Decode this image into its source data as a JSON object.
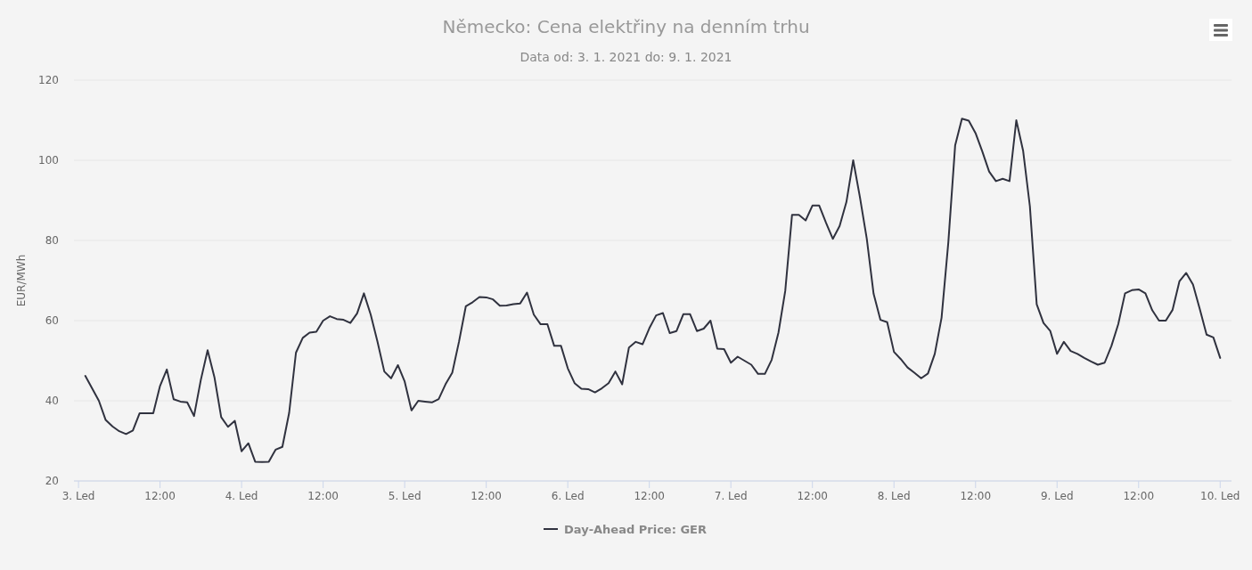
{
  "chart_data": {
    "type": "line",
    "title": "Německo: Cena elektřiny na denním trhu",
    "subtitle": "Data od: 3. 1. 2021 do: 9. 1. 2021",
    "ylabel": "EUR/MWh",
    "xlim": [
      "2021-01-02T23:20",
      "2021-01-10T01:40"
    ],
    "xticks": [
      {
        "value": "2021-01-03T00:00",
        "label": "3. Led"
      },
      {
        "value": "2021-01-03T12:00",
        "label": "12:00"
      },
      {
        "value": "2021-01-04T00:00",
        "label": "4. Led"
      },
      {
        "value": "2021-01-04T12:00",
        "label": "12:00"
      },
      {
        "value": "2021-01-05T00:00",
        "label": "5. Led"
      },
      {
        "value": "2021-01-05T12:00",
        "label": "12:00"
      },
      {
        "value": "2021-01-06T00:00",
        "label": "6. Led"
      },
      {
        "value": "2021-01-06T12:00",
        "label": "12:00"
      },
      {
        "value": "2021-01-07T00:00",
        "label": "7. Led"
      },
      {
        "value": "2021-01-07T12:00",
        "label": "12:00"
      },
      {
        "value": "2021-01-08T00:00",
        "label": "8. Led"
      },
      {
        "value": "2021-01-08T12:00",
        "label": "12:00"
      },
      {
        "value": "2021-01-09T00:00",
        "label": "9. Led"
      },
      {
        "value": "2021-01-09T12:00",
        "label": "12:00"
      },
      {
        "value": "2021-01-10T00:00",
        "label": "10. Led"
      }
    ],
    "ylim": [
      20,
      120
    ],
    "yticks": [
      20,
      40,
      60,
      80,
      100,
      120
    ],
    "grid": "y",
    "legend": "bottom",
    "x": [
      "2021-01-03T01:00",
      "2021-01-03T02:00",
      "2021-01-03T03:00",
      "2021-01-03T04:00",
      "2021-01-03T05:00",
      "2021-01-03T06:00",
      "2021-01-03T07:00",
      "2021-01-03T08:00",
      "2021-01-03T09:00",
      "2021-01-03T10:00",
      "2021-01-03T11:00",
      "2021-01-03T12:00",
      "2021-01-03T13:00",
      "2021-01-03T14:00",
      "2021-01-03T15:00",
      "2021-01-03T16:00",
      "2021-01-03T17:00",
      "2021-01-03T18:00",
      "2021-01-03T19:00",
      "2021-01-03T20:00",
      "2021-01-03T21:00",
      "2021-01-03T22:00",
      "2021-01-03T23:00",
      "2021-01-04T00:00",
      "2021-01-04T01:00",
      "2021-01-04T02:00",
      "2021-01-04T03:00",
      "2021-01-04T04:00",
      "2021-01-04T05:00",
      "2021-01-04T06:00",
      "2021-01-04T07:00",
      "2021-01-04T08:00",
      "2021-01-04T09:00",
      "2021-01-04T10:00",
      "2021-01-04T11:00",
      "2021-01-04T12:00",
      "2021-01-04T13:00",
      "2021-01-04T14:00",
      "2021-01-04T15:00",
      "2021-01-04T16:00",
      "2021-01-04T17:00",
      "2021-01-04T18:00",
      "2021-01-04T19:00",
      "2021-01-04T20:00",
      "2021-01-04T21:00",
      "2021-01-04T22:00",
      "2021-01-04T23:00",
      "2021-01-05T00:00",
      "2021-01-05T01:00",
      "2021-01-05T02:00",
      "2021-01-05T03:00",
      "2021-01-05T04:00",
      "2021-01-05T05:00",
      "2021-01-05T06:00",
      "2021-01-05T07:00",
      "2021-01-05T08:00",
      "2021-01-05T09:00",
      "2021-01-05T10:00",
      "2021-01-05T11:00",
      "2021-01-05T12:00",
      "2021-01-05T13:00",
      "2021-01-05T14:00",
      "2021-01-05T15:00",
      "2021-01-05T16:00",
      "2021-01-05T17:00",
      "2021-01-05T18:00",
      "2021-01-05T19:00",
      "2021-01-05T20:00",
      "2021-01-05T21:00",
      "2021-01-05T22:00",
      "2021-01-05T23:00",
      "2021-01-06T00:00",
      "2021-01-06T01:00",
      "2021-01-06T02:00",
      "2021-01-06T03:00",
      "2021-01-06T04:00",
      "2021-01-06T05:00",
      "2021-01-06T06:00",
      "2021-01-06T07:00",
      "2021-01-06T08:00",
      "2021-01-06T09:00",
      "2021-01-06T10:00",
      "2021-01-06T11:00",
      "2021-01-06T12:00",
      "2021-01-06T13:00",
      "2021-01-06T14:00",
      "2021-01-06T15:00",
      "2021-01-06T16:00",
      "2021-01-06T17:00",
      "2021-01-06T18:00",
      "2021-01-06T19:00",
      "2021-01-06T20:00",
      "2021-01-06T21:00",
      "2021-01-06T22:00",
      "2021-01-06T23:00",
      "2021-01-07T00:00",
      "2021-01-07T01:00",
      "2021-01-07T02:00",
      "2021-01-07T03:00",
      "2021-01-07T04:00",
      "2021-01-07T05:00",
      "2021-01-07T06:00",
      "2021-01-07T07:00",
      "2021-01-07T08:00",
      "2021-01-07T09:00",
      "2021-01-07T10:00",
      "2021-01-07T11:00",
      "2021-01-07T12:00",
      "2021-01-07T13:00",
      "2021-01-07T14:00",
      "2021-01-07T15:00",
      "2021-01-07T16:00",
      "2021-01-07T17:00",
      "2021-01-07T18:00",
      "2021-01-07T19:00",
      "2021-01-07T20:00",
      "2021-01-07T21:00",
      "2021-01-07T22:00",
      "2021-01-07T23:00",
      "2021-01-08T00:00",
      "2021-01-08T01:00",
      "2021-01-08T02:00",
      "2021-01-08T03:00",
      "2021-01-08T04:00",
      "2021-01-08T05:00",
      "2021-01-08T06:00",
      "2021-01-08T07:00",
      "2021-01-08T08:00",
      "2021-01-08T09:00",
      "2021-01-08T10:00",
      "2021-01-08T11:00",
      "2021-01-08T12:00",
      "2021-01-08T13:00",
      "2021-01-08T14:00",
      "2021-01-08T15:00",
      "2021-01-08T16:00",
      "2021-01-08T17:00",
      "2021-01-08T18:00",
      "2021-01-08T19:00",
      "2021-01-08T20:00",
      "2021-01-08T21:00",
      "2021-01-08T22:00",
      "2021-01-08T23:00",
      "2021-01-09T00:00",
      "2021-01-09T01:00",
      "2021-01-09T02:00",
      "2021-01-09T03:00",
      "2021-01-09T04:00",
      "2021-01-09T05:00",
      "2021-01-09T06:00",
      "2021-01-09T07:00",
      "2021-01-09T08:00",
      "2021-01-09T09:00",
      "2021-01-09T10:00",
      "2021-01-09T11:00",
      "2021-01-09T12:00",
      "2021-01-09T13:00",
      "2021-01-09T14:00",
      "2021-01-09T15:00",
      "2021-01-09T16:00",
      "2021-01-09T17:00",
      "2021-01-09T18:00",
      "2021-01-09T19:00",
      "2021-01-09T20:00",
      "2021-01-09T21:00",
      "2021-01-09T22:00",
      "2021-01-09T23:00",
      "2021-01-10T00:00"
    ],
    "series": [
      {
        "name": "Day-Ahead Price: GER",
        "color": "#30323f",
        "values": [
          46.2,
          43.1,
          40,
          35.2,
          33.6,
          32.4,
          31.7,
          32.6,
          36.9,
          36.9,
          36.9,
          43.7,
          47.8,
          40.4,
          39.8,
          39.6,
          36.2,
          45.2,
          52.6,
          45.9,
          35.9,
          33.5,
          35,
          27.4,
          29.4,
          24.8,
          24.7,
          24.8,
          27.8,
          28.5,
          37,
          52,
          55.7,
          57,
          57.2,
          60,
          61.1,
          60.4,
          60.2,
          59.4,
          61.8,
          66.8,
          61.5,
          54.7,
          47.3,
          45.6,
          48.9,
          44.8,
          37.6,
          40,
          39.8,
          39.6,
          40.4,
          44.1,
          47,
          54.8,
          63.6,
          64.6,
          65.9,
          65.8,
          65.3,
          63.7,
          63.8,
          64.1,
          64.3,
          67,
          61.5,
          59.1,
          59.1,
          53.7,
          53.7,
          48.1,
          44.4,
          43,
          42.9,
          42.1,
          43.1,
          44.4,
          47.3,
          44.1,
          53.3,
          54.7,
          54.1,
          58.1,
          61.3,
          61.9,
          56.9,
          57.4,
          61.6,
          61.6,
          57.4,
          58,
          60,
          53,
          52.9,
          49.5,
          51,
          50,
          49,
          46.7,
          46.7,
          50.2,
          57,
          67.4,
          86.4,
          86.4,
          85,
          88.7,
          88.7,
          84.4,
          80.4,
          83.6,
          89.6,
          100,
          90.7,
          80.4,
          66.7,
          60.2,
          59.6,
          52.2,
          50.4,
          48.3,
          47,
          45.6,
          46.8,
          51.7,
          60.7,
          79.6,
          103.7,
          110.4,
          109.9,
          106.8,
          102.2,
          97.2,
          94.8,
          95.4,
          94.8,
          110,
          102.4,
          88.5,
          64.1,
          59.4,
          57.4,
          51.7,
          54.7,
          52.4,
          51.7,
          50.7,
          49.8,
          49,
          49.5,
          53.7,
          59.1,
          66.8,
          67.6,
          67.8,
          66.8,
          62.6,
          60,
          60,
          62.7,
          69.8,
          71.9,
          69,
          62.9,
          56.5,
          55.8,
          50.7
        ]
      }
    ]
  }
}
